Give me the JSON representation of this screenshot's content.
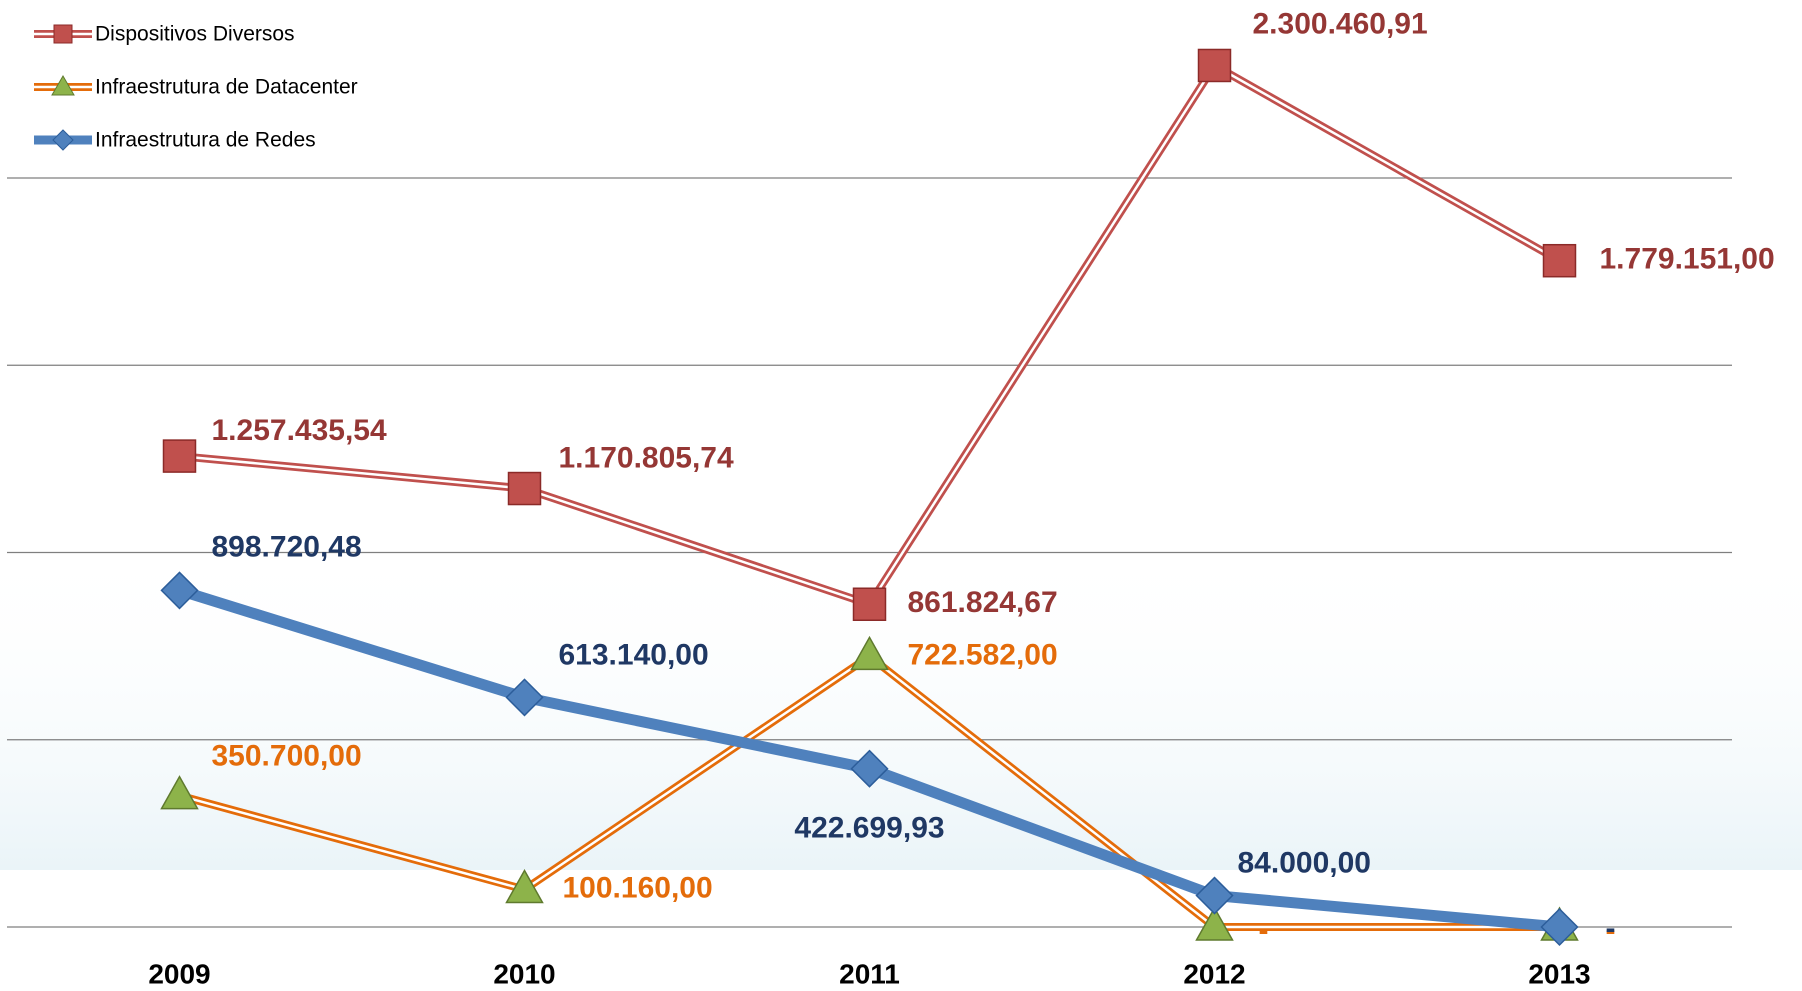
{
  "chart_data": {
    "type": "line",
    "categories": [
      "2009",
      "2010",
      "2011",
      "2012",
      "2013"
    ],
    "series": [
      {
        "name": "Dispositivos Diversos",
        "color": "#c0504d",
        "label_color": "#953735",
        "marker": "square",
        "line_style": "double",
        "values": [
          1257435.54,
          1170805.74,
          861824.67,
          2300460.91,
          1779151.0
        ],
        "value_labels": [
          "1.257.435,54",
          "1.170.805,74",
          "861.824,67",
          "2.300.460,91",
          "1.779.151,00"
        ]
      },
      {
        "name": "Infraestrutura de Datacenter",
        "color": "#e46c0a",
        "label_color": "#e46c0a",
        "marker": "triangle",
        "line_style": "double",
        "values": [
          350700.0,
          100160.0,
          722582.0,
          0,
          0
        ],
        "value_labels": [
          "350.700,00",
          "100.160,00",
          "722.582,00",
          "-",
          "-"
        ]
      },
      {
        "name": "Infraestrutura de Redes",
        "color": "#4f81bd",
        "label_color": "#1f3864",
        "marker": "diamond",
        "line_style": "solid",
        "values": [
          898720.48,
          613140.0,
          422699.93,
          84000.0,
          0
        ],
        "value_labels": [
          "898.720,48",
          "613.140,00",
          "422.699,93",
          "84.000,00",
          "-"
        ]
      }
    ],
    "ylim": [
      0,
      2500000
    ],
    "yticks": [
      0,
      500000,
      1000000,
      1500000,
      2000000
    ],
    "grid": true,
    "legend": "upper left"
  }
}
